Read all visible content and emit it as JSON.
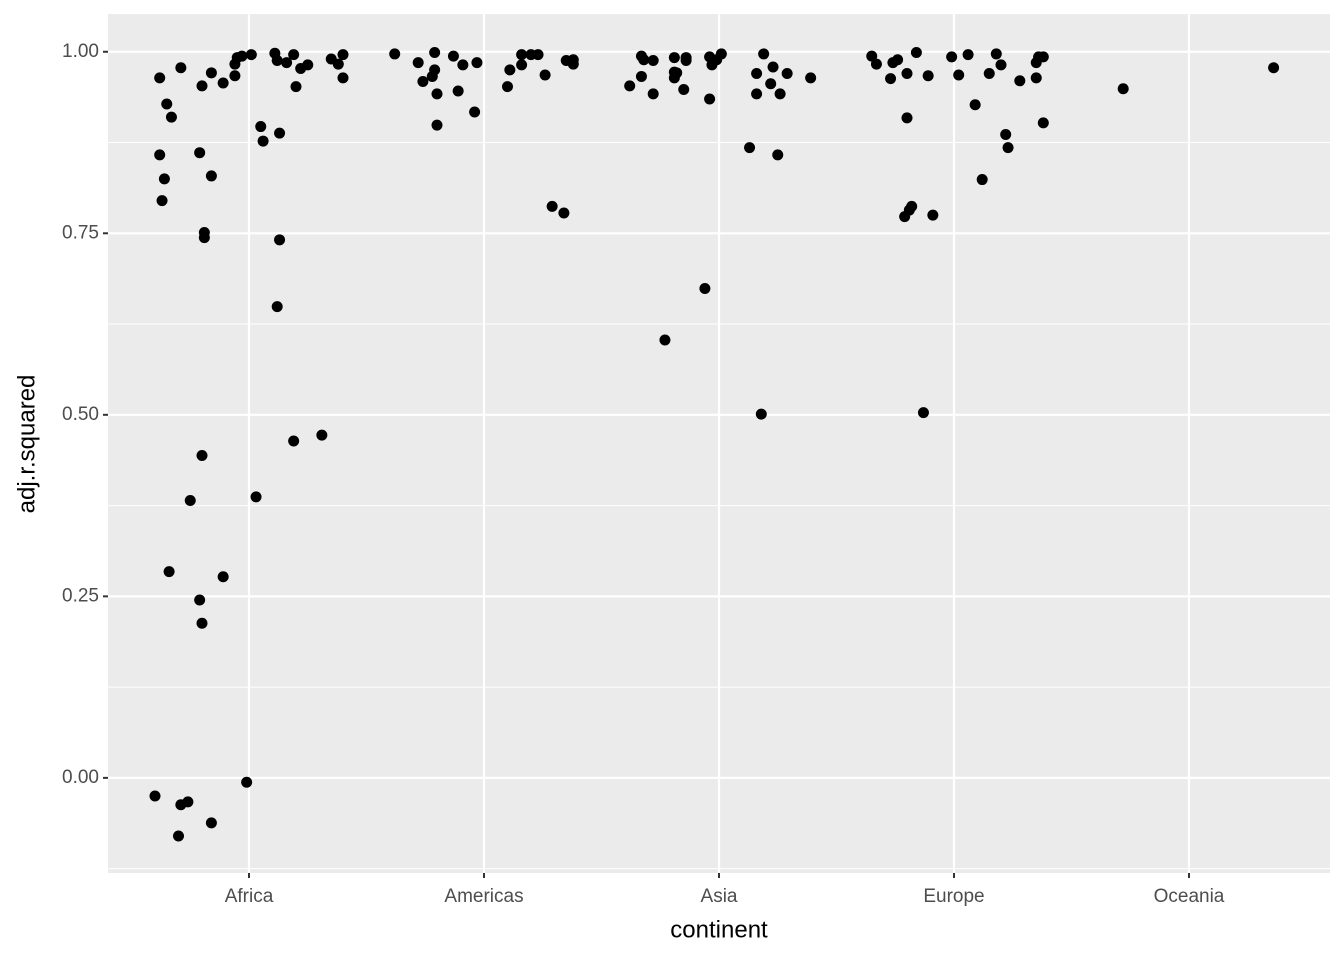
{
  "chart_data": {
    "type": "scatter",
    "xlabel": "continent",
    "ylabel": "adj.r.squared",
    "xlim": [
      0.4,
      5.6
    ],
    "ylim": [
      -0.131,
      1.052
    ],
    "xticks": [
      {
        "value": 1,
        "label": "Africa"
      },
      {
        "value": 2,
        "label": "Americas"
      },
      {
        "value": 3,
        "label": "Asia"
      },
      {
        "value": 4,
        "label": "Europe"
      },
      {
        "value": 5,
        "label": "Oceania"
      }
    ],
    "yticks": [
      {
        "value": 0,
        "label": "0.00"
      },
      {
        "value": 0.25,
        "label": "0.25"
      },
      {
        "value": 0.5,
        "label": "0.50"
      },
      {
        "value": 0.75,
        "label": "0.75"
      },
      {
        "value": 1,
        "label": "1.00"
      }
    ],
    "minor_yticks": [
      -0.125,
      0.125,
      0.375,
      0.625,
      0.875
    ],
    "grid": true,
    "background": "#ebebeb",
    "color": "#000000",
    "x": [
      0.62,
      0.65,
      0.67,
      0.71,
      0.62,
      0.64,
      0.63,
      0.8,
      0.84,
      0.89,
      0.94,
      0.94,
      0.95,
      0.97,
      1.01,
      0.79,
      0.84,
      0.81,
      0.81,
      0.8,
      0.75,
      0.66,
      0.89,
      0.79,
      0.8,
      0.6,
      0.71,
      0.74,
      0.7,
      0.84,
      0.99,
      1.03,
      1.05,
      1.06,
      1.11,
      1.12,
      1.16,
      1.19,
      1.22,
      1.25,
      1.2,
      1.13,
      1.13,
      1.12,
      1.19,
      1.31,
      1.35,
      1.38,
      1.4,
      1.4,
      1.62,
      1.72,
      1.74,
      1.78,
      1.79,
      1.79,
      1.8,
      1.8,
      1.87,
      1.89,
      1.91,
      1.97,
      1.96,
      2.1,
      2.11,
      2.16,
      2.16,
      2.2,
      2.23,
      2.26,
      2.29,
      2.34,
      2.35,
      2.38,
      2.38,
      2.62,
      2.67,
      2.67,
      2.68,
      2.72,
      2.72,
      2.77,
      2.81,
      2.81,
      2.82,
      2.81,
      2.85,
      2.86,
      2.86,
      2.94,
      2.96,
      2.96,
      2.97,
      2.99,
      3.01,
      3.13,
      3.16,
      3.16,
      3.18,
      3.19,
      3.22,
      3.23,
      3.25,
      3.26,
      3.29,
      3.39,
      3.65,
      3.67,
      3.73,
      3.74,
      3.76,
      3.8,
      3.8,
      3.79,
      3.81,
      3.82,
      3.84,
      3.87,
      3.89,
      3.91,
      3.99,
      4.02,
      4.06,
      4.09,
      4.12,
      4.15,
      4.18,
      4.2,
      4.22,
      4.23,
      4.28,
      4.35,
      4.35,
      4.36,
      4.38,
      4.38,
      4.72,
      5.36
    ],
    "values": [
      0.964,
      0.928,
      0.91,
      0.978,
      0.858,
      0.825,
      0.795,
      0.953,
      0.971,
      0.957,
      0.967,
      0.983,
      0.992,
      0.994,
      0.996,
      0.861,
      0.829,
      0.751,
      0.744,
      0.444,
      0.382,
      0.284,
      0.277,
      0.245,
      0.213,
      -0.025,
      -0.037,
      -0.033,
      -0.08,
      -0.062,
      -0.006,
      0.387,
      0.897,
      0.877,
      0.998,
      0.988,
      0.985,
      0.996,
      0.977,
      0.982,
      0.952,
      0.888,
      0.741,
      0.649,
      0.464,
      0.472,
      0.99,
      0.983,
      0.996,
      0.964,
      0.997,
      0.985,
      0.959,
      0.966,
      0.975,
      0.999,
      0.942,
      0.899,
      0.994,
      0.946,
      0.982,
      0.985,
      0.917,
      0.952,
      0.975,
      0.982,
      0.996,
      0.996,
      0.996,
      0.968,
      0.787,
      0.778,
      0.988,
      0.983,
      0.989,
      0.953,
      0.994,
      0.966,
      0.989,
      0.988,
      0.942,
      0.603,
      0.992,
      0.972,
      0.971,
      0.964,
      0.948,
      0.988,
      0.992,
      0.674,
      0.935,
      0.993,
      0.982,
      0.989,
      0.997,
      0.868,
      0.97,
      0.942,
      0.501,
      0.997,
      0.956,
      0.979,
      0.858,
      0.942,
      0.97,
      0.964,
      0.994,
      0.983,
      0.963,
      0.985,
      0.989,
      0.97,
      0.909,
      0.773,
      0.782,
      0.787,
      0.999,
      0.503,
      0.967,
      0.775,
      0.993,
      0.968,
      0.996,
      0.927,
      0.824,
      0.97,
      0.997,
      0.982,
      0.886,
      0.868,
      0.96,
      0.964,
      0.985,
      0.993,
      0.993,
      0.902,
      0.949,
      0.978
    ]
  }
}
